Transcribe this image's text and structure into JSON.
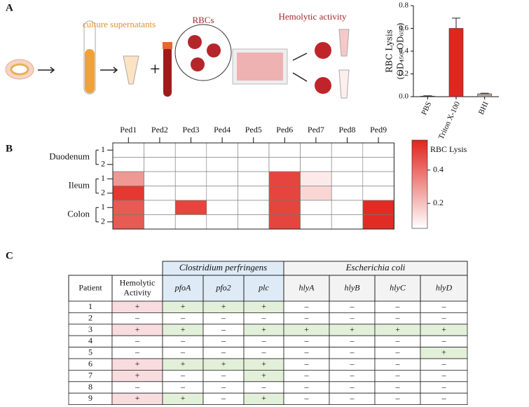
{
  "panel_labels": [
    "A",
    "B",
    "C"
  ],
  "diagram": {
    "labels": [
      "culture supernatants",
      "RBCs",
      "Hemolytic activity"
    ]
  },
  "chart_data": [
    {
      "type": "bar",
      "ylabel": [
        "RBC Lysis",
        "(OD₄₅₀-OD₆₅₀)"
      ],
      "categories": [
        "PBS",
        "Triton X-100",
        "BHI"
      ],
      "values": [
        0.005,
        0.6,
        0.025
      ],
      "errors": [
        0.003,
        0.09,
        0.005
      ],
      "colors": [
        "#7a1a12",
        "#e0261e",
        "#b9a49a"
      ],
      "ylim": [
        0,
        0.8
      ],
      "yticks": [
        {
          "value": 0,
          "label": "0.0"
        },
        0.2,
        0.4,
        0.6,
        0.8
      ]
    },
    {
      "type": "heatmap",
      "x": [
        "Ped1",
        "Ped2",
        "Ped3",
        "Ped4",
        "Ped5",
        "Ped6",
        "Ped7",
        "Ped8",
        "Ped9"
      ],
      "groups": [
        {
          "name": "Duodenum",
          "rows": [
            "1",
            "2"
          ]
        },
        {
          "name": "Ileum",
          "rows": [
            "1",
            "2"
          ]
        },
        {
          "name": "Colon",
          "rows": [
            "1",
            "2"
          ]
        }
      ],
      "values": [
        [
          0.05,
          0.05,
          0.05,
          0.05,
          0.05,
          0.05,
          0.05,
          0.05,
          0.05
        ],
        [
          0.05,
          0.05,
          0.05,
          0.05,
          0.05,
          0.05,
          0.05,
          0.05,
          0.05
        ],
        [
          0.3,
          0.05,
          0.05,
          0.05,
          0.05,
          0.5,
          0.1,
          0.05,
          0.05
        ],
        [
          0.53,
          0.05,
          0.05,
          0.05,
          0.05,
          0.5,
          0.15,
          0.05,
          0.05
        ],
        [
          0.45,
          0.05,
          0.5,
          0.05,
          0.05,
          0.5,
          0.05,
          0.05,
          0.56
        ],
        [
          0.45,
          0.05,
          0.05,
          0.05,
          0.05,
          0.5,
          0.05,
          0.05,
          0.56
        ]
      ],
      "color": "#e0241c",
      "colorbar": {
        "title": "RBC Lysis",
        "clim": [
          0.05,
          0.58
        ],
        "ticks": [
          0.2,
          0.4
        ]
      }
    }
  ],
  "table": {
    "groups": [
      "Clostridium perfringens",
      "Escherichia coli"
    ],
    "columns": [
      "Patient",
      "Hemolytic Activity",
      "pfoA",
      "pfo2",
      "plc",
      "hlyA",
      "hlyB",
      "hlyC",
      "hlyD"
    ],
    "rows": [
      [
        "1",
        "+",
        "+",
        "+",
        "+",
        "–",
        "–",
        "–",
        "–"
      ],
      [
        "2",
        "–",
        "–",
        "–",
        "–",
        "–",
        "–",
        "–",
        "–"
      ],
      [
        "3",
        "+",
        "+",
        "–",
        "+",
        "+",
        "+",
        "+",
        "+"
      ],
      [
        "4",
        "–",
        "–",
        "–",
        "–",
        "–",
        "–",
        "–",
        "–"
      ],
      [
        "5",
        "–",
        "–",
        "–",
        "–",
        "–",
        "–",
        "–",
        "+"
      ],
      [
        "6",
        "+",
        "+",
        "+",
        "+",
        "–",
        "–",
        "–",
        "–"
      ],
      [
        "7",
        "+",
        "–",
        "–",
        "+",
        "–",
        "–",
        "–",
        "–"
      ],
      [
        "8",
        "–",
        "–",
        "–",
        "–",
        "–",
        "–",
        "–",
        "–"
      ],
      [
        "9",
        "+",
        "+",
        "–",
        "+",
        "–",
        "–",
        "–",
        "–"
      ]
    ]
  }
}
